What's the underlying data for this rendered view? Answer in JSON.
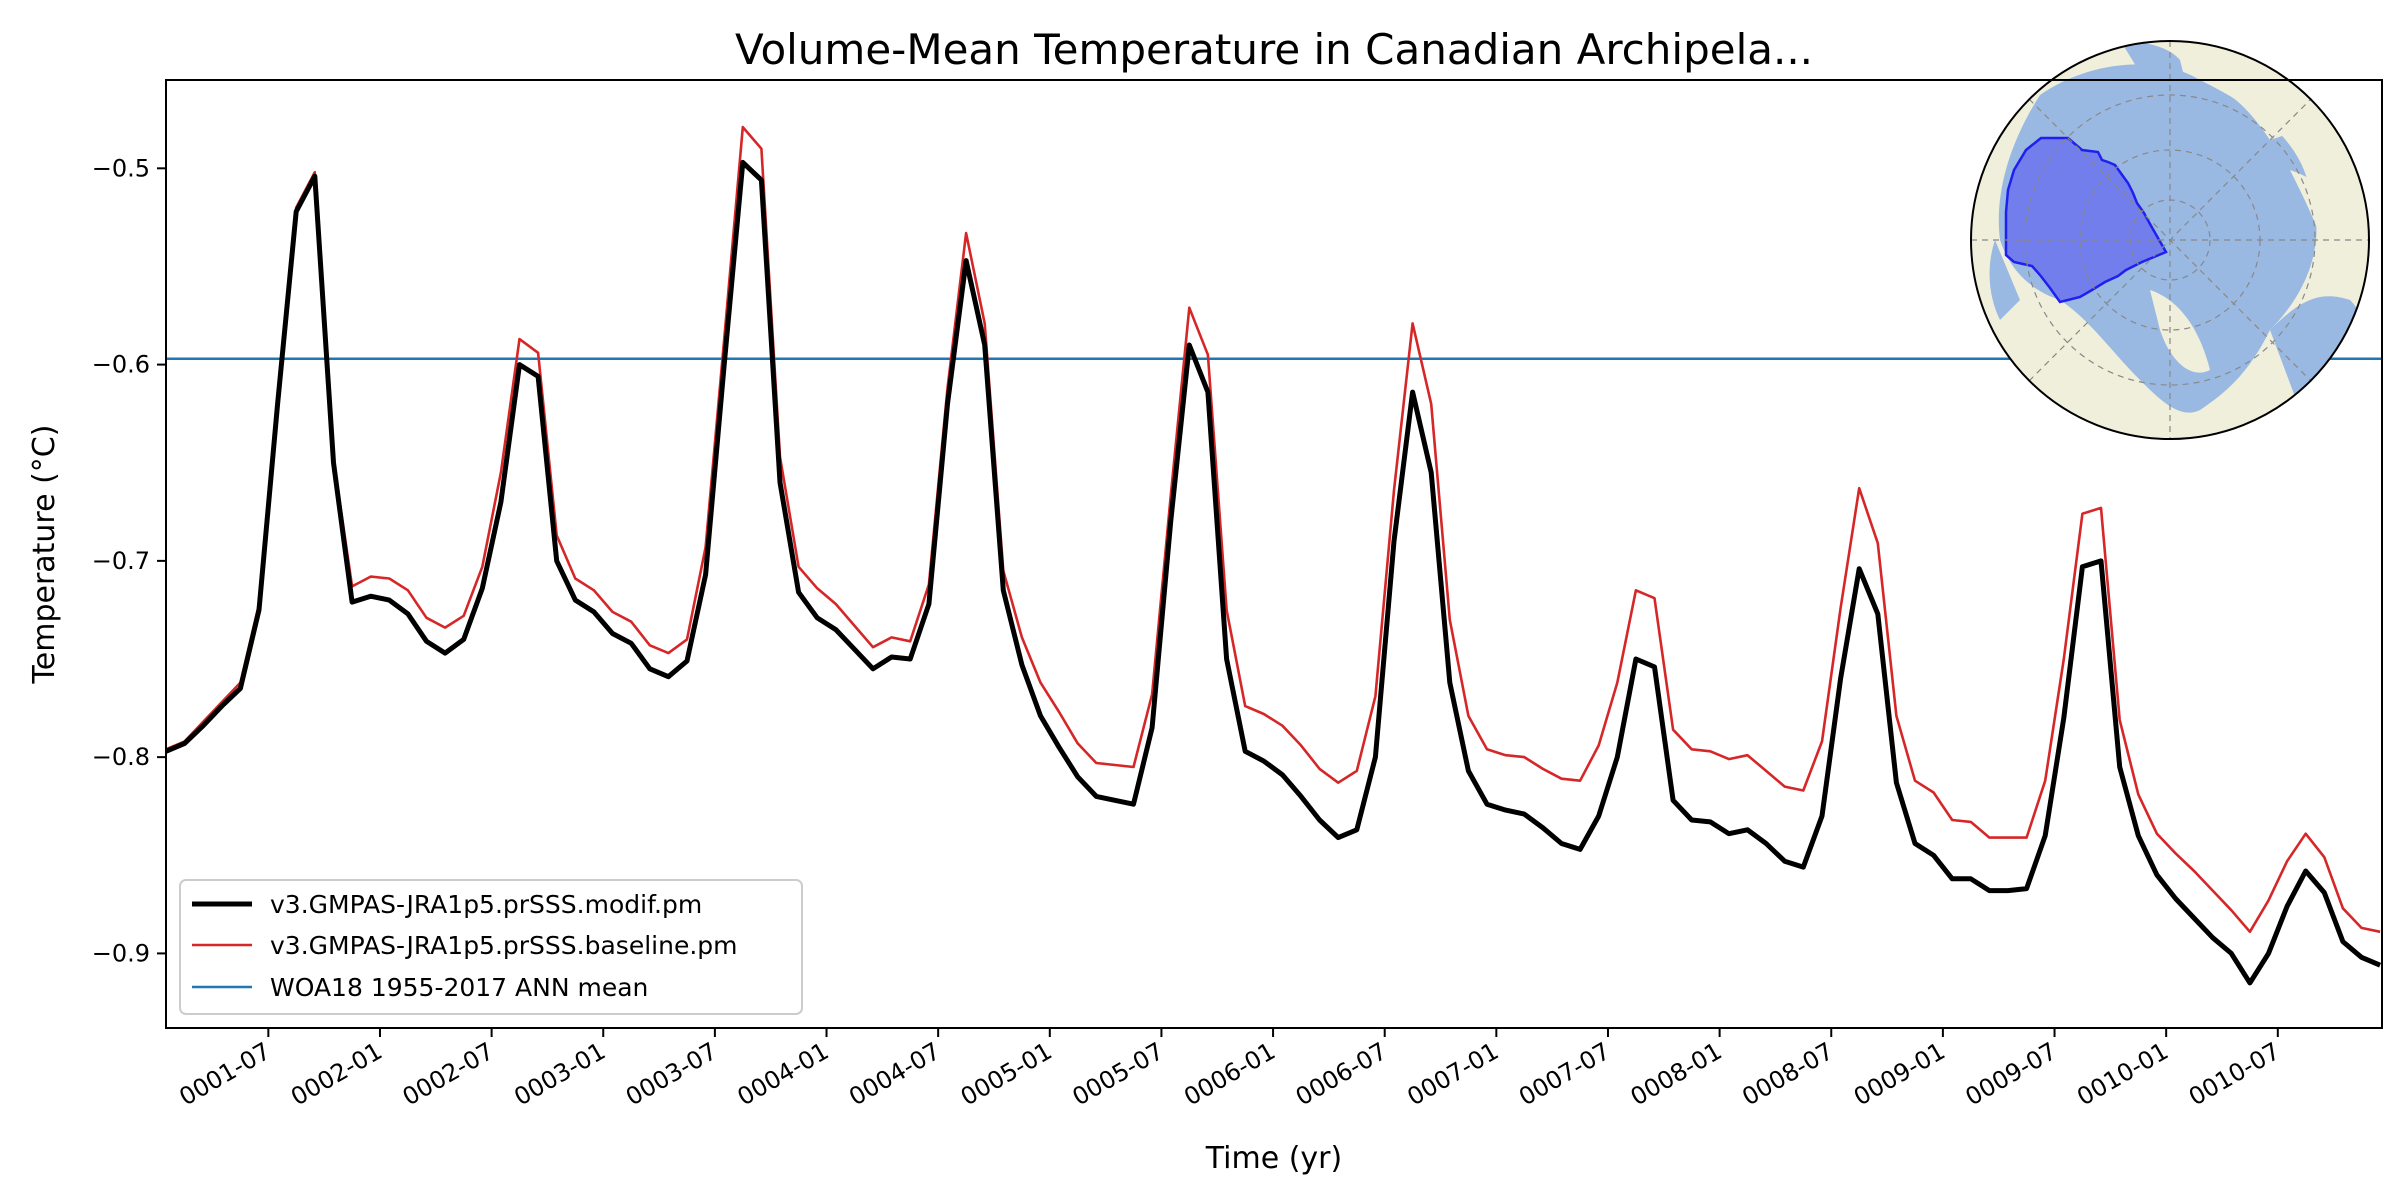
{
  "chart_data": {
    "type": "line",
    "title": "Volume-Mean Temperature in Canadian Archipela...",
    "xlabel": "Time (yr)",
    "ylabel": "Temperature (°C)",
    "x_start_month": 1,
    "x_end_month": 120,
    "xlim": [
      1,
      120.1
    ],
    "ylim": [
      -0.938,
      -0.455
    ],
    "yticks": [
      -0.5,
      -0.6,
      -0.7,
      -0.8,
      -0.9
    ],
    "ytick_labels": [
      "−0.5",
      "−0.6",
      "−0.7",
      "−0.8",
      "−0.9"
    ],
    "xticks_month": [
      6.5,
      12.5,
      18.5,
      24.5,
      30.5,
      36.5,
      42.5,
      48.5,
      54.5,
      60.5,
      66.5,
      72.5,
      78.5,
      84.5,
      90.5,
      96.5,
      102.5,
      108.5,
      114.5
    ],
    "xtick_labels": [
      "0001-07",
      "0002-01",
      "0002-07",
      "0003-01",
      "0003-07",
      "0004-01",
      "0004-07",
      "0005-01",
      "0005-07",
      "0006-01",
      "0006-07",
      "0007-01",
      "0007-07",
      "0008-01",
      "0008-07",
      "0009-01",
      "0009-07",
      "0010-01",
      "0010-07"
    ],
    "legend_position": "lower-left",
    "inset": "Arctic polar map with highlighted Canadian Archipelago region (top-right)",
    "series": [
      {
        "name": "v3.GMPAS-JRA1p5.prSSS.modif.pm",
        "color": "#000000",
        "values": [
          -0.797,
          -0.793,
          -0.784,
          -0.774,
          -0.765,
          -0.725,
          -0.62,
          -0.522,
          -0.504,
          -0.65,
          -0.721,
          -0.718,
          -0.72,
          -0.727,
          -0.741,
          -0.747,
          -0.74,
          -0.714,
          -0.67,
          -0.6,
          -0.606,
          -0.7,
          -0.72,
          -0.726,
          -0.737,
          -0.742,
          -0.755,
          -0.759,
          -0.751,
          -0.707,
          -0.6,
          -0.497,
          -0.506,
          -0.66,
          -0.716,
          -0.729,
          -0.735,
          -0.745,
          -0.755,
          -0.749,
          -0.75,
          -0.722,
          -0.62,
          -0.547,
          -0.59,
          -0.715,
          -0.753,
          -0.779,
          -0.795,
          -0.81,
          -0.82,
          -0.822,
          -0.824,
          -0.785,
          -0.68,
          -0.59,
          -0.614,
          -0.75,
          -0.797,
          -0.802,
          -0.809,
          -0.82,
          -0.832,
          -0.841,
          -0.837,
          -0.8,
          -0.69,
          -0.614,
          -0.655,
          -0.762,
          -0.807,
          -0.824,
          -0.827,
          -0.829,
          -0.836,
          -0.844,
          -0.847,
          -0.83,
          -0.8,
          -0.75,
          -0.754,
          -0.822,
          -0.832,
          -0.833,
          -0.839,
          -0.837,
          -0.844,
          -0.853,
          -0.856,
          -0.83,
          -0.76,
          -0.704,
          -0.727,
          -0.813,
          -0.844,
          -0.85,
          -0.862,
          -0.862,
          -0.868,
          -0.868,
          -0.867,
          -0.84,
          -0.78,
          -0.703,
          -0.7,
          -0.805,
          -0.84,
          -0.86,
          -0.872,
          -0.882,
          -0.892,
          -0.9,
          -0.915,
          -0.9,
          -0.876,
          -0.858,
          -0.869,
          -0.894,
          -0.902,
          -0.906
        ]
      },
      {
        "name": "v3.GMPAS-JRA1p5.prSSS.baseline.pm",
        "color": "#d62728",
        "values": [
          -0.796,
          -0.792,
          -0.782,
          -0.772,
          -0.762,
          -0.722,
          -0.617,
          -0.52,
          -0.502,
          -0.648,
          -0.713,
          -0.708,
          -0.709,
          -0.715,
          -0.729,
          -0.734,
          -0.728,
          -0.703,
          -0.655,
          -0.587,
          -0.594,
          -0.687,
          -0.709,
          -0.715,
          -0.726,
          -0.731,
          -0.743,
          -0.747,
          -0.74,
          -0.693,
          -0.587,
          -0.479,
          -0.49,
          -0.647,
          -0.703,
          -0.714,
          -0.722,
          -0.733,
          -0.744,
          -0.739,
          -0.741,
          -0.712,
          -0.612,
          -0.533,
          -0.579,
          -0.705,
          -0.739,
          -0.762,
          -0.777,
          -0.793,
          -0.803,
          -0.804,
          -0.805,
          -0.768,
          -0.667,
          -0.571,
          -0.595,
          -0.725,
          -0.774,
          -0.778,
          -0.784,
          -0.794,
          -0.806,
          -0.813,
          -0.807,
          -0.769,
          -0.664,
          -0.579,
          -0.62,
          -0.73,
          -0.779,
          -0.796,
          -0.799,
          -0.8,
          -0.806,
          -0.811,
          -0.812,
          -0.794,
          -0.762,
          -0.715,
          -0.719,
          -0.786,
          -0.796,
          -0.797,
          -0.801,
          -0.799,
          -0.807,
          -0.815,
          -0.817,
          -0.792,
          -0.724,
          -0.663,
          -0.691,
          -0.779,
          -0.812,
          -0.818,
          -0.832,
          -0.833,
          -0.841,
          -0.841,
          -0.841,
          -0.812,
          -0.75,
          -0.676,
          -0.673,
          -0.781,
          -0.819,
          -0.839,
          -0.849,
          -0.858,
          -0.868,
          -0.878,
          -0.889,
          -0.873,
          -0.853,
          -0.839,
          -0.851,
          -0.877,
          -0.887,
          -0.889
        ]
      },
      {
        "name": "WOA18 1955-2017 ANN mean",
        "color": "#1f77b4",
        "constant": -0.597
      }
    ]
  }
}
